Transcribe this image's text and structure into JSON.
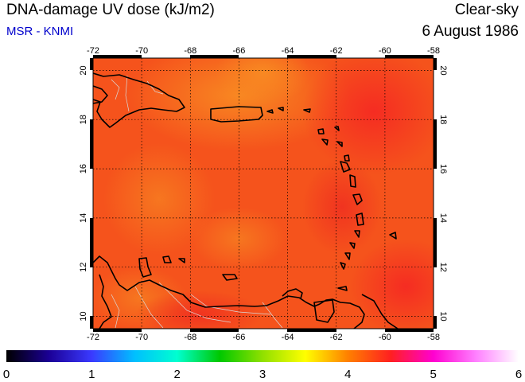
{
  "header": {
    "title": "DNA-damage UV dose (kJ/m2)",
    "credit": "MSR - KNMI",
    "condition": "Clear-sky",
    "date": "6 August 1986"
  },
  "map": {
    "lon_range": [
      -72,
      -58
    ],
    "lat_range": [
      9.5,
      20.5
    ],
    "lon_ticks": [
      -72,
      -70,
      -68,
      -66,
      -64,
      -62,
      -60,
      -58
    ],
    "lat_ticks": [
      10,
      12,
      14,
      16,
      18,
      20
    ],
    "lon_tick_labels": [
      "-72",
      "-70",
      "-68",
      "-66",
      "-64",
      "-62",
      "-60",
      "-58"
    ],
    "lat_tick_labels": [
      "10",
      "12",
      "14",
      "16",
      "18",
      "20"
    ],
    "gridlines": "dotted",
    "coastline_color": "#000000",
    "border_color": "#cccccc",
    "field_colors": {
      "dominant": "#f5531c",
      "light_patch": "#f77a20",
      "dark_patch": "#f52a22"
    }
  },
  "colorbar": {
    "min": 0,
    "max": 6,
    "tick_labels": [
      "0",
      "1",
      "2",
      "3",
      "4",
      "5",
      "6"
    ],
    "stops": [
      "#000000",
      "#1b0096",
      "#3a3aff",
      "#00bfff",
      "#00ffd0",
      "#00c800",
      "#90e000",
      "#ffff00",
      "#ff8000",
      "#ff2020",
      "#ff00d0",
      "#ff80ff",
      "#ffffff"
    ]
  }
}
